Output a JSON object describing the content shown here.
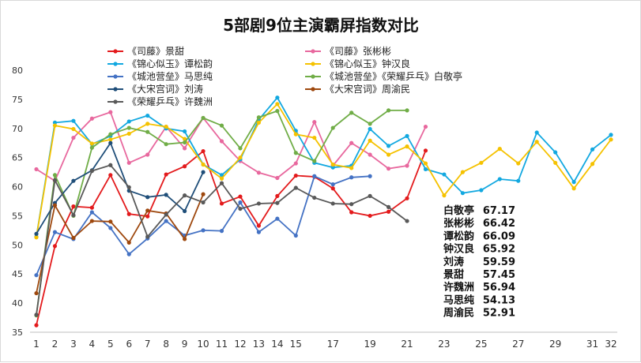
{
  "chart_data": {
    "type": "line",
    "title": "5部剧9位主演霸屏指数对比",
    "xlabel": "",
    "ylabel": "",
    "ylim": [
      35,
      80
    ],
    "yticks": [
      35,
      40,
      45,
      50,
      55,
      60,
      65,
      70,
      75,
      80
    ],
    "xlim": [
      1,
      32
    ],
    "xtick_labels": [
      "1",
      "2",
      "3",
      "4",
      "5",
      "6",
      "7",
      "8",
      "9",
      "10",
      "11",
      "12",
      "13",
      "14",
      "15",
      "17",
      "19",
      "21",
      "23",
      "25",
      "27",
      "29",
      "31",
      "32"
    ],
    "grid": false,
    "legend_placement": "top",
    "series": [
      {
        "name": "《司藤》景甜",
        "color": "#e31a1c",
        "x": [
          1,
          2,
          3,
          4,
          5,
          6,
          7,
          8,
          9,
          10,
          11,
          12,
          13,
          14,
          15,
          16,
          17,
          18,
          19,
          20,
          21,
          22
        ],
        "y": [
          36.2,
          49.8,
          56.6,
          56.4,
          62.0,
          55.3,
          54.9,
          62.1,
          63.5,
          66.1,
          57.1,
          58.3,
          53.3,
          58.4,
          61.9,
          61.7,
          59.7,
          55.6,
          55.0,
          55.7,
          58.0,
          66.2
        ]
      },
      {
        "name": "《司藤》张彬彬",
        "color": "#e8689e",
        "x": [
          1,
          2,
          3,
          4,
          5,
          6,
          7,
          8,
          9,
          10,
          11,
          12,
          13,
          14,
          15,
          16,
          17,
          18,
          19,
          20,
          21,
          22
        ],
        "y": [
          63.0,
          61.0,
          68.4,
          71.7,
          72.8,
          64.1,
          65.5,
          70.3,
          66.6,
          71.8,
          67.8,
          64.4,
          62.4,
          61.5,
          64.0,
          71.1,
          63.6,
          67.5,
          65.5,
          63.1,
          63.6,
          70.3
        ]
      },
      {
        "name": "《锦心似玉》谭松韵",
        "color": "#12a8e0",
        "x": [
          1,
          2,
          3,
          4,
          5,
          6,
          7,
          8,
          9,
          10,
          11,
          12,
          13,
          14,
          15,
          16,
          17,
          18,
          19,
          20,
          21,
          22,
          23,
          24,
          25,
          26,
          27,
          28,
          29,
          30,
          31,
          32
        ],
        "y": [
          51.4,
          71.0,
          71.3,
          67.3,
          68.7,
          71.2,
          72.2,
          70.0,
          69.5,
          63.8,
          62.0,
          64.7,
          71.5,
          75.3,
          69.6,
          64.1,
          63.3,
          63.6,
          69.9,
          67.0,
          68.7,
          63.0,
          62.1,
          58.9,
          59.4,
          61.3,
          61.0,
          69.3,
          65.9,
          60.8,
          66.4,
          68.9
        ]
      },
      {
        "name": "《锦心似玉》钟汉良",
        "color": "#f5c200",
        "x": [
          1,
          2,
          3,
          4,
          5,
          6,
          7,
          8,
          9,
          10,
          11,
          12,
          13,
          14,
          15,
          16,
          17,
          18,
          19,
          20,
          21,
          22,
          23,
          24,
          25,
          26,
          27,
          28,
          29,
          30,
          31,
          32
        ],
        "y": [
          51.3,
          70.5,
          69.9,
          67.4,
          68.1,
          69.1,
          70.8,
          70.3,
          68.2,
          63.8,
          61.4,
          65.0,
          71.0,
          74.2,
          69.0,
          68.4,
          63.8,
          63.2,
          67.9,
          65.5,
          66.9,
          64.0,
          58.5,
          62.5,
          64.1,
          66.5,
          64.0,
          67.7,
          64.1,
          59.7,
          63.9,
          68.1
        ]
      },
      {
        "name": "《城池营垒》马思纯",
        "color": "#4472c4",
        "x": [
          1,
          2,
          3,
          4,
          5,
          6,
          7,
          8,
          9,
          10,
          11,
          12,
          13,
          14,
          15,
          16,
          17,
          18,
          19
        ],
        "y": [
          44.8,
          52.2,
          51.0,
          55.6,
          52.9,
          48.4,
          51.1,
          54.1,
          51.6,
          52.5,
          52.4,
          57.3,
          52.2,
          54.5,
          51.6,
          61.8,
          60.4,
          61.6,
          61.8
        ]
      },
      {
        "name": "《城池营垒》《荣耀乒乓》白敬亭",
        "color": "#70ad47",
        "x": [
          1,
          2,
          3,
          4,
          5,
          6,
          7,
          8,
          9,
          10,
          11,
          12,
          13,
          14,
          15,
          16,
          17,
          18,
          19,
          20,
          21
        ],
        "y": [
          37.9,
          62.0,
          55.0,
          66.7,
          69.0,
          70.1,
          69.4,
          67.3,
          67.6,
          71.8,
          70.5,
          66.6,
          71.9,
          73.0,
          65.8,
          64.4,
          70.1,
          72.7,
          70.8,
          73.1,
          73.1
        ]
      },
      {
        "name": "《大宋宫词》刘涛",
        "color": "#1f4e79",
        "x": [
          1,
          2,
          3,
          4,
          5,
          6,
          7,
          8,
          9,
          10
        ],
        "y": [
          51.9,
          57.2,
          61.0,
          62.8,
          67.5,
          59.3,
          58.2,
          58.6,
          55.8,
          62.5
        ]
      },
      {
        "name": "《大宋宫词》周渝民",
        "color": "#9e480e",
        "x": [
          1,
          2,
          3,
          4,
          5,
          6,
          7,
          8,
          9,
          10
        ],
        "y": [
          41.7,
          56.8,
          51.2,
          54.1,
          54.0,
          50.4,
          55.9,
          55.4,
          51.0,
          58.7
        ]
      },
      {
        "name": "《荣耀乒乓》许魏洲",
        "color": "#595959",
        "x": [
          1,
          2,
          3,
          4,
          5,
          6,
          7,
          8,
          9,
          10,
          11,
          12,
          13,
          14,
          15,
          16,
          17,
          18,
          19,
          20,
          21
        ],
        "y": [
          38.0,
          61.1,
          55.1,
          62.7,
          63.7,
          59.9,
          51.4,
          55.2,
          58.5,
          57.3,
          60.6,
          56.2,
          57.1,
          57.2,
          59.8,
          58.1,
          57.1,
          57.0,
          58.4,
          56.5,
          54.1
        ]
      }
    ],
    "ranking": [
      {
        "name": "白敬亭",
        "value": "67.17"
      },
      {
        "name": "张彬彬",
        "value": "66.42"
      },
      {
        "name": "谭松韵",
        "value": "66.09"
      },
      {
        "name": "钟汉良",
        "value": "65.92"
      },
      {
        "name": "刘涛",
        "value": "59.59"
      },
      {
        "name": "景甜",
        "value": "57.45"
      },
      {
        "name": "许魏洲",
        "value": "56.94"
      },
      {
        "name": "马思纯",
        "value": "54.13"
      },
      {
        "name": "周渝民",
        "value": "52.91"
      }
    ]
  }
}
